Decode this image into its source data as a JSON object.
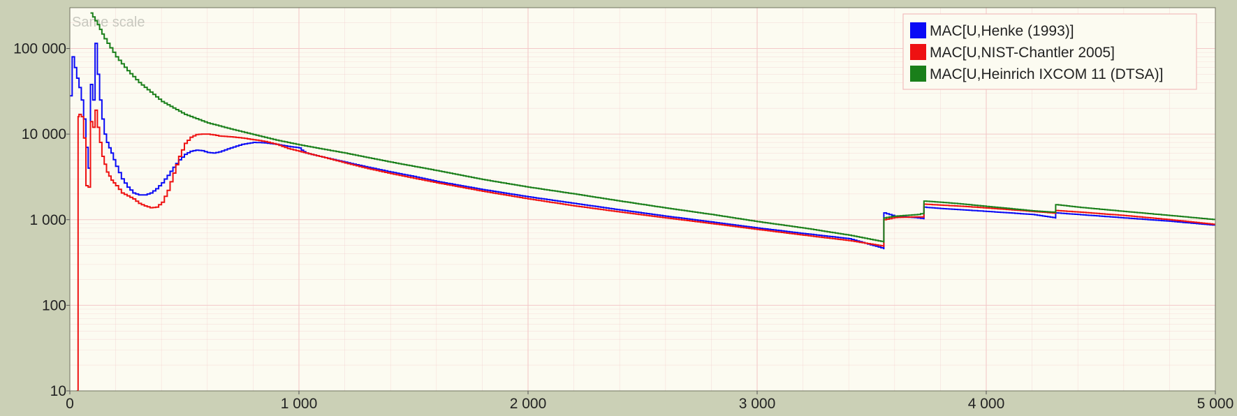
{
  "chart_data": {
    "type": "line",
    "title": "",
    "watermark": "Same scale",
    "xlabel": "",
    "ylabel": "",
    "xlim": [
      0,
      5000
    ],
    "ylim": [
      10,
      300000
    ],
    "yscale": "log",
    "grid": true,
    "legend_position": "top-right",
    "x_ticks": [
      0,
      1000,
      2000,
      3000,
      4000,
      5000
    ],
    "x_tick_labels": [
      "0",
      "1 000",
      "2 000",
      "3 000",
      "4 000",
      "5 000"
    ],
    "y_ticks": [
      10,
      100,
      1000,
      10000,
      100000
    ],
    "y_tick_labels": [
      "10",
      "100",
      "1 000",
      "10 000",
      "100 000"
    ],
    "colors": {
      "page_bg": "#cbd0b6",
      "plot_bg": "#fcfbf1",
      "grid": "#f3c8c8",
      "legend_border": "#f2bcbc"
    },
    "series": [
      {
        "name": "MAC[U,Henke (1993)]",
        "color": "#0a0af5",
        "x": [
          0,
          10,
          20,
          30,
          40,
          50,
          60,
          70,
          80,
          90,
          100,
          110,
          120,
          130,
          140,
          150,
          160,
          180,
          200,
          225,
          250,
          275,
          300,
          325,
          350,
          375,
          400,
          425,
          450,
          475,
          500,
          525,
          550,
          575,
          600,
          625,
          650,
          700,
          750,
          800,
          850,
          900,
          950,
          1000,
          1010,
          1030,
          1100,
          1200,
          1300,
          1400,
          1500,
          1600,
          1800,
          2000,
          2200,
          2400,
          2600,
          2800,
          3000,
          3200,
          3400,
          3552,
          3553,
          3600,
          3700,
          3727,
          3728,
          3800,
          3900,
          4000,
          4100,
          4200,
          4302,
          4303,
          4400,
          4600,
          4800,
          5000
        ],
        "y": [
          28000,
          80000,
          60000,
          45000,
          35000,
          25000,
          15000,
          7000,
          4000,
          38000,
          25000,
          115000,
          50000,
          25000,
          15000,
          10000,
          8000,
          6000,
          4200,
          3000,
          2400,
          2050,
          1950,
          1950,
          2050,
          2300,
          2700,
          3300,
          4100,
          5000,
          5800,
          6300,
          6500,
          6400,
          6100,
          6000,
          6200,
          6900,
          7600,
          8000,
          7900,
          7600,
          7200,
          6900,
          6500,
          6000,
          5400,
          4700,
          4100,
          3600,
          3200,
          2800,
          2250,
          1850,
          1550,
          1300,
          1100,
          940,
          800,
          690,
          600,
          460,
          1200,
          1100,
          1050,
          1030,
          1400,
          1350,
          1300,
          1250,
          1200,
          1150,
          1050,
          1200,
          1150,
          1050,
          960,
          860
        ]
      },
      {
        "name": "MAC[U,NIST-Chantler 2005]",
        "color": "#ee1111",
        "x": [
          30,
          35,
          36,
          40,
          50,
          60,
          70,
          80,
          90,
          100,
          110,
          120,
          130,
          140,
          160,
          180,
          200,
          225,
          250,
          275,
          300,
          325,
          350,
          375,
          400,
          425,
          450,
          475,
          500,
          525,
          550,
          575,
          600,
          625,
          650,
          700,
          750,
          800,
          850,
          900,
          950,
          1000,
          1030,
          1100,
          1200,
          1300,
          1400,
          1500,
          1600,
          1800,
          2000,
          2200,
          2400,
          2600,
          2800,
          3000,
          3200,
          3400,
          3552,
          3553,
          3600,
          3700,
          3727,
          3728,
          3800,
          3900,
          4000,
          4100,
          4200,
          4302,
          4303,
          4400,
          4600,
          4800,
          5000
        ],
        "y": [
          10,
          10,
          16000,
          17000,
          16000,
          9000,
          2500,
          2400,
          14000,
          12000,
          19000,
          12000,
          8000,
          5500,
          3600,
          2900,
          2500,
          2050,
          1900,
          1750,
          1550,
          1450,
          1380,
          1400,
          1600,
          2200,
          3500,
          5500,
          7800,
          9200,
          9900,
          10000,
          10000,
          9800,
          9500,
          9300,
          9000,
          8600,
          8200,
          7600,
          6800,
          6300,
          6000,
          5400,
          4600,
          3950,
          3450,
          3050,
          2700,
          2150,
          1750,
          1450,
          1230,
          1050,
          900,
          770,
          660,
          570,
          490,
          1000,
          1060,
          1080,
          1080,
          1520,
          1480,
          1430,
          1370,
          1310,
          1250,
          1190,
          1280,
          1230,
          1120,
          1000,
          880
        ]
      },
      {
        "name": "MAC[U,Heinrich IXCOM 11 (DTSA)]",
        "color": "#1a7f1a",
        "x": [
          90,
          120,
          150,
          200,
          250,
          300,
          400,
          500,
          600,
          700,
          800,
          900,
          1000,
          1100,
          1200,
          1400,
          1600,
          1800,
          2000,
          2200,
          2400,
          2600,
          2800,
          3000,
          3200,
          3400,
          3552,
          3553,
          3600,
          3700,
          3727,
          3728,
          3800,
          3900,
          4000,
          4100,
          4200,
          4302,
          4303,
          4400,
          4600,
          4800,
          5000
        ],
        "y": [
          260000,
          190000,
          130000,
          80000,
          55000,
          40000,
          24000,
          17000,
          13500,
          11500,
          9900,
          8500,
          7500,
          6700,
          6000,
          4700,
          3750,
          2950,
          2400,
          2000,
          1650,
          1370,
          1150,
          950,
          800,
          660,
          550,
          1050,
          1100,
          1150,
          1200,
          1650,
          1600,
          1520,
          1430,
          1350,
          1270,
          1220,
          1500,
          1400,
          1250,
          1120,
          1000
        ]
      }
    ]
  }
}
